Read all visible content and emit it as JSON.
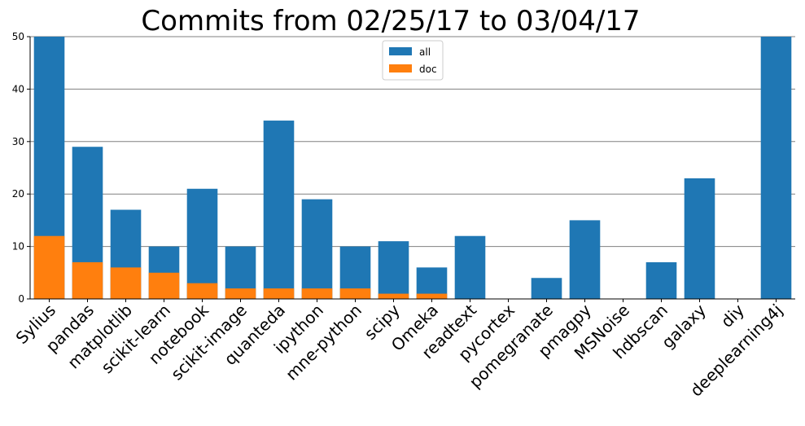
{
  "chart_data": {
    "type": "bar",
    "title": "Commits from 02/25/17 to 03/04/17",
    "xlabel": "",
    "ylabel": "",
    "ylim": [
      0,
      50
    ],
    "yticks": [
      0,
      10,
      20,
      30,
      40,
      50
    ],
    "grid": "horizontal",
    "legend_position": "top-center",
    "categories": [
      "Sylius",
      "pandas",
      "matplotlib",
      "scikit-learn",
      "notebook",
      "scikit-image",
      "quanteda",
      "ipython",
      "mne-python",
      "scipy",
      "Omeka",
      "readtext",
      "pycortex",
      "pomegranate",
      "pmagpy",
      "MSNoise",
      "hdbscan",
      "galaxy",
      "diy",
      "deeplearning4j"
    ],
    "series": [
      {
        "name": "all",
        "color": "#1f77b4",
        "values": [
          50,
          29,
          17,
          10,
          21,
          10,
          34,
          19,
          10,
          11,
          6,
          12,
          0,
          4,
          15,
          0,
          7,
          23,
          0,
          50
        ]
      },
      {
        "name": "doc",
        "color": "#ff7f0e",
        "values": [
          12,
          7,
          6,
          5,
          3,
          2,
          2,
          2,
          2,
          1,
          1,
          0,
          0,
          0,
          0,
          0,
          0,
          0,
          0,
          0
        ]
      }
    ]
  }
}
